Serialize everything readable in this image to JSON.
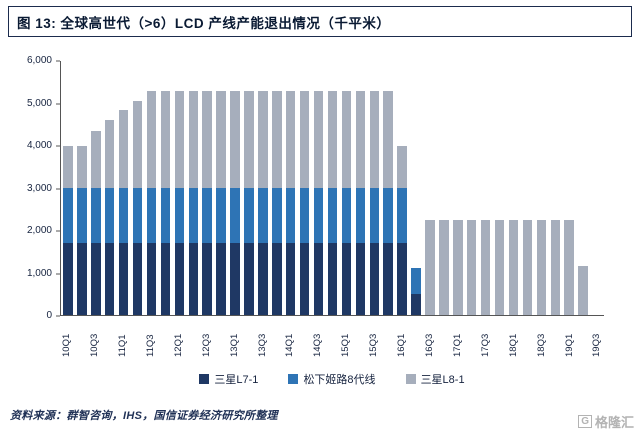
{
  "figure": {
    "title": "图 13: 全球高世代（>6）LCD 产线产能退出情况（千平米）",
    "source": "资料来源：群智咨询，IHS，国信证券经济研究所整理",
    "watermark": "格隆汇",
    "watermark_icon": "G"
  },
  "chart_data": {
    "type": "bar",
    "stacked": true,
    "title": "全球高世代（>6）LCD 产线产能退出情况（千平米）",
    "xlabel": "",
    "ylabel": "",
    "ylim": [
      0,
      6000
    ],
    "grid": false,
    "legend_position": "bottom",
    "y_ticks": [
      "0",
      "1,000",
      "2,000",
      "3,000",
      "4,000",
      "5,000",
      "6,000"
    ],
    "x_label_every": 2,
    "categories": [
      "10Q1",
      "10Q2",
      "10Q3",
      "10Q4",
      "11Q1",
      "11Q2",
      "11Q3",
      "11Q4",
      "12Q1",
      "12Q2",
      "12Q3",
      "12Q4",
      "13Q1",
      "13Q2",
      "13Q3",
      "13Q4",
      "14Q1",
      "14Q2",
      "14Q3",
      "14Q4",
      "15Q1",
      "15Q2",
      "15Q3",
      "15Q4",
      "16Q1",
      "16Q2",
      "16Q3",
      "16Q4",
      "17Q1",
      "17Q2",
      "17Q3",
      "17Q4",
      "18Q1",
      "18Q2",
      "18Q3",
      "18Q4",
      "19Q1",
      "19Q2",
      "19Q3"
    ],
    "series": [
      {
        "name": "三星L7-1",
        "color": "#1f3864",
        "values": [
          1700,
          1700,
          1700,
          1700,
          1700,
          1700,
          1700,
          1700,
          1700,
          1700,
          1700,
          1700,
          1700,
          1700,
          1700,
          1700,
          1700,
          1700,
          1700,
          1700,
          1700,
          1700,
          1700,
          1700,
          1700,
          500,
          0,
          0,
          0,
          0,
          0,
          0,
          0,
          0,
          0,
          0,
          0,
          0,
          0
        ]
      },
      {
        "name": "松下姬路8代线",
        "color": "#2e74b5",
        "values": [
          1300,
          1300,
          1300,
          1300,
          1300,
          1300,
          1300,
          1300,
          1300,
          1300,
          1300,
          1300,
          1300,
          1300,
          1300,
          1300,
          1300,
          1300,
          1300,
          1300,
          1300,
          1300,
          1300,
          1300,
          1300,
          600,
          0,
          0,
          0,
          0,
          0,
          0,
          0,
          0,
          0,
          0,
          0,
          0,
          0
        ]
      },
      {
        "name": "三星L8-1",
        "color": "#a6aebc",
        "values": [
          1000,
          1000,
          1350,
          1600,
          1850,
          2050,
          2300,
          2300,
          2300,
          2300,
          2300,
          2300,
          2300,
          2300,
          2300,
          2300,
          2300,
          2300,
          2300,
          2300,
          2300,
          2300,
          2300,
          2300,
          1000,
          0,
          2250,
          2250,
          2250,
          2250,
          2250,
          2250,
          2250,
          2250,
          2250,
          2250,
          2250,
          1150,
          0
        ]
      }
    ]
  }
}
